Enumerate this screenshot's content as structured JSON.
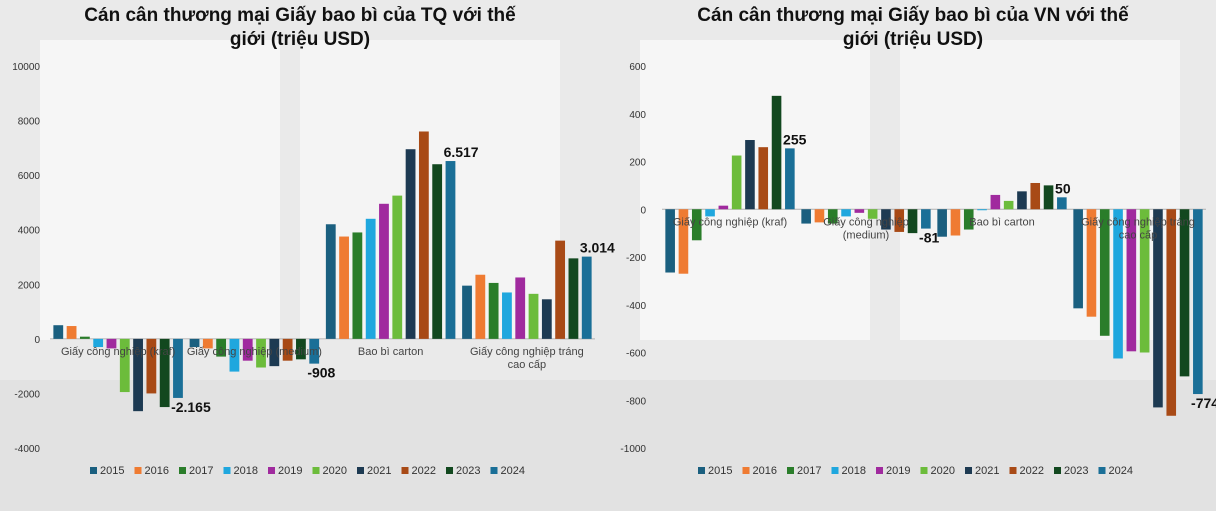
{
  "palette": [
    "#1a5f7f",
    "#ef7b32",
    "#2a7d2a",
    "#1fa7de",
    "#a02a9e",
    "#6cbc3b",
    "#1d3a52",
    "#a84a16",
    "#12481f",
    "#1a6f97"
  ],
  "chart_data": [
    {
      "type": "bar",
      "title": "Cán cân thương mại Giấy bao bì của TQ với thế\ngiới (triệu USD)",
      "categories": [
        "Giấy công nghiệp (kraf)",
        "Giấy công nghiệp (medium)",
        "Bao bì carton",
        "Giấy công nghiệp tráng\ncao cấp"
      ],
      "ylim": [
        -4000,
        10000
      ],
      "yticks": [
        -4000,
        -2000,
        0,
        2000,
        4000,
        6000,
        8000,
        10000
      ],
      "ytick_labels": [
        "-4000",
        "-2000",
        "0",
        "2000",
        "4000",
        "6000",
        "8000",
        "10000"
      ],
      "legend_position": "bottom",
      "series": [
        {
          "name": "2015",
          "values": [
            500,
            -300,
            4200,
            1950
          ]
        },
        {
          "name": "2016",
          "values": [
            470,
            -350,
            3750,
            2350
          ]
        },
        {
          "name": "2017",
          "values": [
            80,
            -650,
            3900,
            2050
          ]
        },
        {
          "name": "2018",
          "values": [
            -300,
            -1200,
            4400,
            1700
          ]
        },
        {
          "name": "2019",
          "values": [
            -350,
            -800,
            4950,
            2250
          ]
        },
        {
          "name": "2020",
          "values": [
            -1950,
            -1050,
            5250,
            1650
          ]
        },
        {
          "name": "2021",
          "values": [
            -2650,
            -1000,
            6950,
            1450
          ]
        },
        {
          "name": "2022",
          "values": [
            -2000,
            -800,
            7600,
            3600
          ]
        },
        {
          "name": "2023",
          "values": [
            -2500,
            -750,
            6400,
            2950
          ]
        },
        {
          "name": "2024",
          "values": [
            -2165,
            -908,
            6517,
            3014
          ]
        }
      ],
      "data_labels": [
        {
          "category_index": 0,
          "series_index": 9,
          "text": "-2.165"
        },
        {
          "category_index": 1,
          "series_index": 9,
          "text": "-908"
        },
        {
          "category_index": 2,
          "series_index": 9,
          "text": "6.517"
        },
        {
          "category_index": 3,
          "series_index": 9,
          "text": "3.014"
        }
      ]
    },
    {
      "type": "bar",
      "title": "Cán cân thương mại Giấy bao bì của VN với thế\ngiới (triệu USD)",
      "categories": [
        "Giấy công nghiệp (kraf)",
        "Giấy công nghiệp\n(medium)",
        "Bao bì carton",
        "Giấy công nghiệp tráng\ncao cấp"
      ],
      "ylim": [
        -1000,
        600
      ],
      "yticks": [
        -1000,
        -800,
        -600,
        -400,
        -200,
        0,
        200,
        400,
        600
      ],
      "ytick_labels": [
        "-1000",
        "-800",
        "-600",
        "-400",
        "-200",
        "0",
        "200",
        "400",
        "600"
      ],
      "legend_position": "bottom",
      "series": [
        {
          "name": "2015",
          "values": [
            -265,
            -60,
            -115,
            -415
          ]
        },
        {
          "name": "2016",
          "values": [
            -270,
            -55,
            -110,
            -450
          ]
        },
        {
          "name": "2017",
          "values": [
            -130,
            -60,
            -85,
            -530
          ]
        },
        {
          "name": "2018",
          "values": [
            -30,
            -30,
            0,
            -625
          ]
        },
        {
          "name": "2019",
          "values": [
            15,
            -15,
            60,
            -595
          ]
        },
        {
          "name": "2020",
          "values": [
            225,
            -40,
            35,
            -600
          ]
        },
        {
          "name": "2021",
          "values": [
            290,
            -85,
            75,
            -830
          ]
        },
        {
          "name": "2022",
          "values": [
            260,
            -95,
            110,
            -865
          ]
        },
        {
          "name": "2023",
          "values": [
            475,
            -100,
            100,
            -700
          ]
        },
        {
          "name": "2024",
          "values": [
            255,
            -81,
            50,
            -774
          ]
        }
      ],
      "data_labels": [
        {
          "category_index": 0,
          "series_index": 9,
          "text": "255"
        },
        {
          "category_index": 1,
          "series_index": 9,
          "text": "-81"
        },
        {
          "category_index": 2,
          "series_index": 9,
          "text": "50"
        },
        {
          "category_index": 3,
          "series_index": 9,
          "text": "-774"
        }
      ]
    }
  ]
}
